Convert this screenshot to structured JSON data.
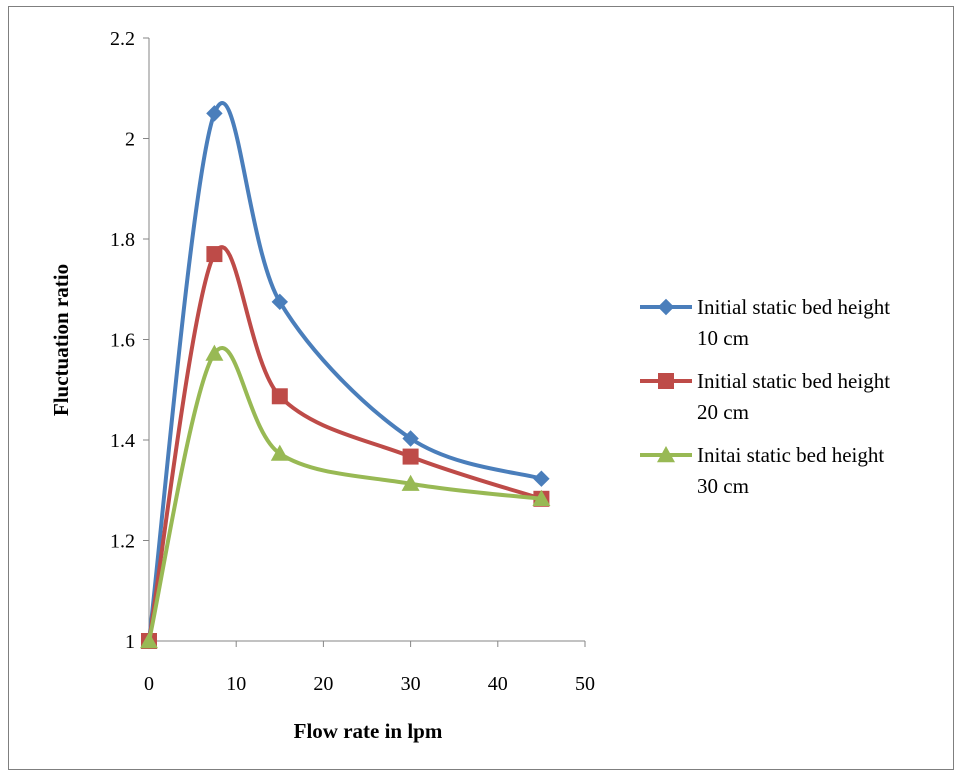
{
  "chart_data": {
    "type": "line",
    "title": "",
    "xlabel": "Flow rate in lpm",
    "ylabel": "Fluctuation ratio",
    "xlim": [
      0,
      50
    ],
    "ylim": [
      1,
      2.2
    ],
    "x_ticks": [
      "0",
      "10",
      "20",
      "30",
      "40",
      "50"
    ],
    "y_ticks": [
      "1",
      "1.2",
      "1.4",
      "1.6",
      "1.8",
      "2",
      "2.2"
    ],
    "grid": false,
    "legend_position": "right",
    "smooth": true,
    "series": [
      {
        "name": "Initial static bed height 10 cm",
        "legend_lines": [
          "Initial static bed height",
          "10 cm"
        ],
        "marker": "diamond",
        "color": "#4a7ebb",
        "x": [
          0,
          7.5,
          15,
          30,
          45
        ],
        "y": [
          1.0,
          2.05,
          1.675,
          1.403,
          1.323
        ]
      },
      {
        "name": "Initial static bed height 20 cm",
        "legend_lines": [
          "Initial static bed height",
          "20 cm"
        ],
        "marker": "square",
        "color": "#be4b48",
        "x": [
          0,
          7.5,
          15,
          30,
          45
        ],
        "y": [
          1.0,
          1.77,
          1.487,
          1.367,
          1.283
        ]
      },
      {
        "name": "Initai static bed height 30 cm",
        "legend_lines": [
          "Initai static bed height",
          "30 cm"
        ],
        "marker": "triangle",
        "color": "#98b954",
        "x": [
          0,
          7.5,
          15,
          30,
          45
        ],
        "y": [
          1.0,
          1.572,
          1.373,
          1.313,
          1.283
        ]
      }
    ]
  }
}
